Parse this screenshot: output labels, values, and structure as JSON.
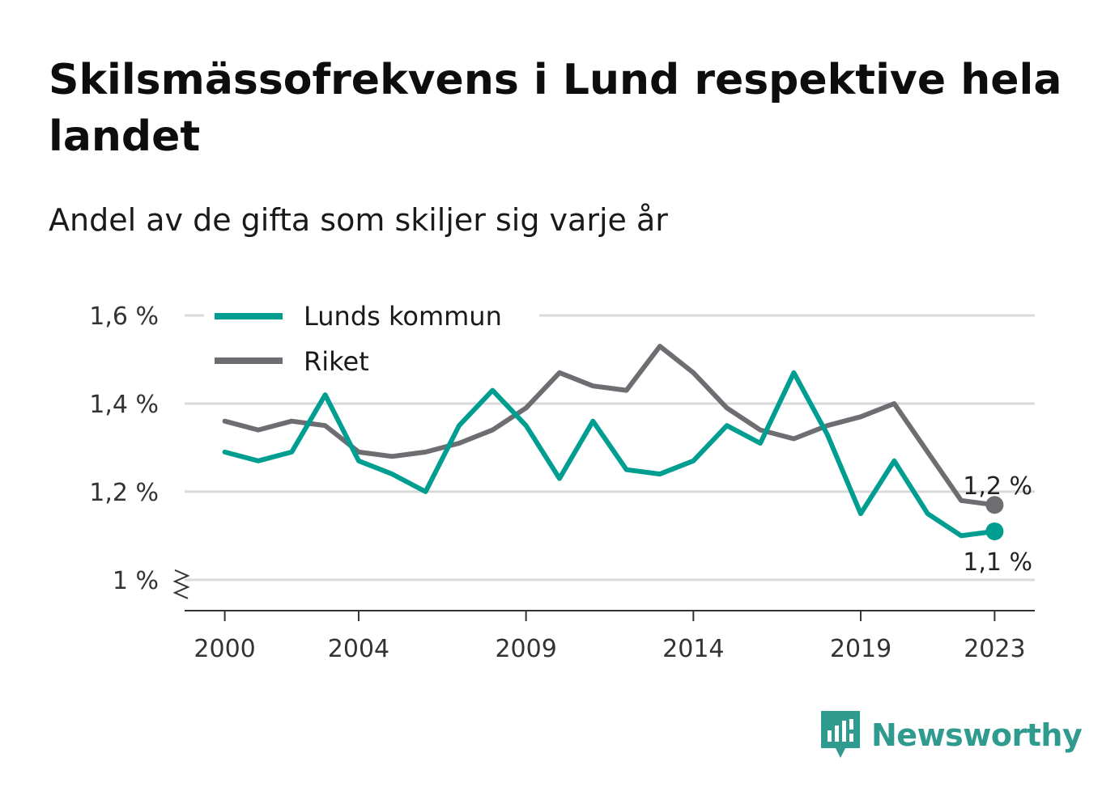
{
  "title": "Skilsmässofrekvens i Lund respektive hela landet",
  "subtitle": "Andel av de gifta som skiljer sig varje år",
  "brand": {
    "name": "Newsworthy",
    "icon": "newsworthy-logo-icon",
    "color": "#2f9b8f"
  },
  "colors": {
    "lund": "#009e91",
    "riket": "#6e6d72",
    "grid": "#d9d9d9",
    "axis": "#333333"
  },
  "chart_data": {
    "type": "line",
    "title": "Skilsmässofrekvens i Lund respektive hela landet",
    "subtitle": "Andel av de gifta som skiljer sig varje år",
    "xlabel": "",
    "ylabel": "",
    "x": [
      2000,
      2001,
      2002,
      2003,
      2004,
      2005,
      2006,
      2007,
      2008,
      2009,
      2010,
      2011,
      2012,
      2013,
      2014,
      2015,
      2016,
      2017,
      2018,
      2019,
      2020,
      2021,
      2022,
      2023
    ],
    "x_tick_labels": [
      "2000",
      "2004",
      "2009",
      "2014",
      "2019",
      "2023"
    ],
    "x_ticks": [
      2000,
      2004,
      2009,
      2014,
      2019,
      2023
    ],
    "y_tick_labels": [
      "1 %",
      "1,2 %",
      "1,4 %",
      "1,6 %"
    ],
    "y_ticks": [
      1.0,
      1.2,
      1.4,
      1.6
    ],
    "ylim": [
      0.93,
      1.6
    ],
    "xlim": [
      1998.8,
      2024.2
    ],
    "y_axis_break": true,
    "grid": true,
    "legend_position": "top-left",
    "series": [
      {
        "name": "Lunds kommun",
        "color": "#009e91",
        "values": [
          1.29,
          1.27,
          1.29,
          1.42,
          1.27,
          1.24,
          1.2,
          1.35,
          1.43,
          1.35,
          1.23,
          1.36,
          1.25,
          1.24,
          1.27,
          1.35,
          1.31,
          1.47,
          1.33,
          1.15,
          1.27,
          1.15,
          1.1,
          1.11
        ],
        "end_label": "1,1 %"
      },
      {
        "name": "Riket",
        "color": "#6e6d72",
        "values": [
          1.36,
          1.34,
          1.36,
          1.35,
          1.29,
          1.28,
          1.29,
          1.31,
          1.34,
          1.39,
          1.47,
          1.44,
          1.43,
          1.53,
          1.47,
          1.39,
          1.34,
          1.32,
          1.35,
          1.37,
          1.4,
          1.29,
          1.18,
          1.17
        ],
        "end_label": "1,2 %"
      }
    ]
  }
}
